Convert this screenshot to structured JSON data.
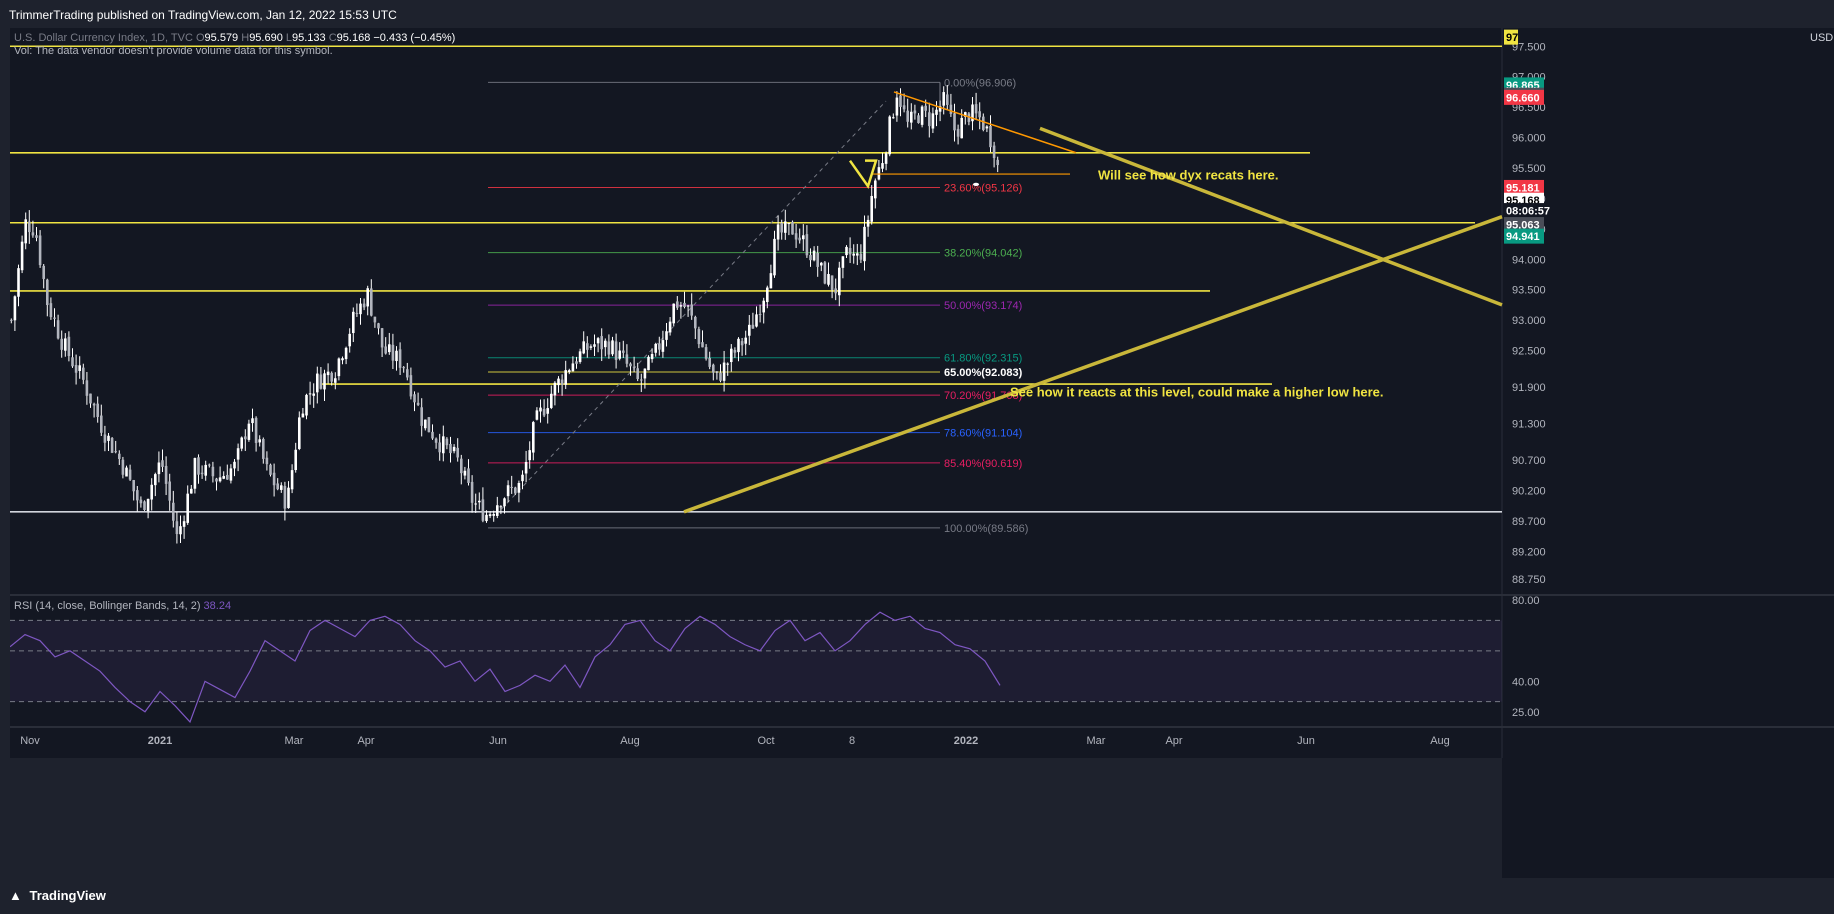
{
  "header": {
    "published": "TrimmerTrading published on TradingView.com, Jan 12, 2022 15:53 UTC"
  },
  "footer": {
    "brand": "TradingView",
    "logo_icon": "tradingview-logo-icon"
  },
  "legend": {
    "symbol": "U.S. Dollar Currency Index, 1D, TVC",
    "o_label": "O",
    "o_value": "95.579",
    "h_label": "H",
    "h_value": "95.690",
    "l_label": "L",
    "l_value": "95.133",
    "c_label": "C",
    "c_value": "95.168",
    "change": "−0.433 (−0.45%)",
    "vol_note": "Vol: The data vendor doesn't provide volume data for this symbol."
  },
  "colors": {
    "background": "#131722",
    "frame": "#1e222d",
    "level_line": "#f0e442",
    "trend_line": "#c9b73a",
    "rsi_line": "#7e57c2",
    "up_down_candle": "#ffffff"
  },
  "chart_data": {
    "type": "candlestick",
    "symbol": "DXY",
    "price_axis": {
      "currency": "USD",
      "tick_labels": [
        "97.500",
        "97.000",
        "96.500",
        "96.000",
        "95.500",
        "95.000",
        "94.500",
        "94.000",
        "93.500",
        "93.000",
        "92.500",
        "91.900",
        "91.300",
        "90.700",
        "90.200",
        "89.700",
        "89.200",
        "88.750"
      ],
      "ylim": [
        88.5,
        97.8
      ]
    },
    "time_axis": {
      "labels": [
        "Nov",
        "2021",
        "Mar",
        "Apr",
        "Jun",
        "Aug",
        "Oct",
        "8",
        "2022",
        "Mar",
        "Apr",
        "Jun",
        "Aug"
      ]
    },
    "price_badges": [
      {
        "text": "97",
        "bg": "#f0e442",
        "fg": "#000000",
        "price": 97.65
      },
      {
        "text": "96.865",
        "bg": "#089981",
        "fg": "#ffffff",
        "price": 96.865
      },
      {
        "text": "96.696",
        "bg": "#4a4e58",
        "fg": "#ffffff",
        "price": 96.696
      },
      {
        "text": "96.660",
        "bg": "#f23645",
        "fg": "#ffffff",
        "price": 96.66
      },
      {
        "text": "95.181",
        "bg": "#f23645",
        "fg": "#ffffff",
        "price": 95.18
      },
      {
        "text": "95.168",
        "bg": "#ffffff",
        "fg": "#000000",
        "price": 94.97
      },
      {
        "text": "08:06:57",
        "bg": "#131722",
        "fg": "#ffffff",
        "price": 94.8
      },
      {
        "text": "95.063",
        "bg": "#4a4e58",
        "fg": "#ffffff",
        "price": 94.57
      },
      {
        "text": "94.941",
        "bg": "#089981",
        "fg": "#ffffff",
        "price": 94.38
      }
    ],
    "fibonacci": [
      {
        "label": "0.00%(96.906)",
        "ratio": 0.0,
        "color": "#787b86"
      },
      {
        "label": "23.60%(95.126)",
        "ratio": 0.236,
        "color": "#f23645"
      },
      {
        "label": "38.20%(94.042)",
        "ratio": 0.382,
        "color": "#4caf50"
      },
      {
        "label": "50.00%(93.174)",
        "ratio": 0.5,
        "color": "#9c27b0"
      },
      {
        "label": "61.80%(92.315)",
        "ratio": 0.618,
        "color": "#089981"
      },
      {
        "label": "65.00%(92.083)",
        "ratio": 0.65,
        "color": "#f0e442"
      },
      {
        "label": "70.20%(91.708)",
        "ratio": 0.702,
        "color": "#e91e63"
      },
      {
        "label": "78.60%(91.104)",
        "ratio": 0.786,
        "color": "#2962ff"
      },
      {
        "label": "85.40%(90.619)",
        "ratio": 0.854,
        "color": "#e91e63"
      },
      {
        "label": "100.00%(89.586)",
        "ratio": 1.0,
        "color": "#787b86"
      }
    ],
    "horizontal_levels": [
      97.5,
      95.75,
      94.6,
      93.48,
      91.95,
      89.85
    ],
    "annotations": [
      {
        "text": "Will see how dyx recats here.",
        "price": 95.38
      },
      {
        "text": "See how it reacts at this level, could make a higher low here.",
        "price": 91.81
      }
    ],
    "candle_anchors": [
      [
        0,
        93.0
      ],
      [
        14,
        94.6
      ],
      [
        24,
        94.5
      ],
      [
        36,
        93.3
      ],
      [
        52,
        92.6
      ],
      [
        72,
        92.0
      ],
      [
        92,
        91.2
      ],
      [
        112,
        90.6
      ],
      [
        130,
        89.9
      ],
      [
        150,
        90.7
      ],
      [
        166,
        89.4
      ],
      [
        184,
        90.6
      ],
      [
        206,
        90.4
      ],
      [
        224,
        90.6
      ],
      [
        238,
        91.4
      ],
      [
        256,
        90.5
      ],
      [
        276,
        90.0
      ],
      [
        290,
        91.6
      ],
      [
        306,
        92.0
      ],
      [
        324,
        92.2
      ],
      [
        342,
        93.0
      ],
      [
        356,
        93.45
      ],
      [
        372,
        92.5
      ],
      [
        392,
        92.3
      ],
      [
        410,
        91.4
      ],
      [
        428,
        91.0
      ],
      [
        446,
        90.7
      ],
      [
        462,
        90.0
      ],
      [
        476,
        89.8
      ],
      [
        490,
        90.1
      ],
      [
        510,
        90.3
      ],
      [
        524,
        91.3
      ],
      [
        540,
        91.8
      ],
      [
        560,
        92.3
      ],
      [
        580,
        92.6
      ],
      [
        598,
        92.6
      ],
      [
        614,
        92.3
      ],
      [
        628,
        91.95
      ],
      [
        646,
        92.5
      ],
      [
        664,
        93.3
      ],
      [
        676,
        93.2
      ],
      [
        690,
        92.6
      ],
      [
        704,
        92.0
      ],
      [
        720,
        92.4
      ],
      [
        738,
        92.8
      ],
      [
        752,
        93.4
      ],
      [
        766,
        94.4
      ],
      [
        782,
        94.5
      ],
      [
        796,
        94.2
      ],
      [
        810,
        93.8
      ],
      [
        824,
        93.5
      ],
      [
        836,
        94.1
      ],
      [
        848,
        94.0
      ],
      [
        856,
        94.6
      ],
      [
        862,
        95.2
      ],
      [
        872,
        95.7
      ],
      [
        880,
        96.3
      ],
      [
        886,
        96.8
      ],
      [
        896,
        96.2
      ],
      [
        908,
        96.4
      ],
      [
        920,
        96.3
      ],
      [
        932,
        96.6
      ],
      [
        944,
        96.1
      ],
      [
        958,
        96.4
      ],
      [
        970,
        96.3
      ],
      [
        982,
        95.9
      ],
      [
        990,
        95.2
      ]
    ],
    "rsi": {
      "label": "RSI (14, close, Bollinger Bands, 14, 2)",
      "value": "38.24",
      "ticks": [
        "80.00",
        "40.00",
        "25.00"
      ],
      "ylim": [
        18,
        82
      ],
      "bands": [
        70,
        55,
        30
      ],
      "values": [
        57,
        63,
        60,
        52,
        55,
        50,
        45,
        37,
        30,
        25,
        35,
        28,
        20,
        40,
        36,
        32,
        45,
        60,
        55,
        50,
        65,
        70,
        66,
        62,
        70,
        72,
        68,
        60,
        55,
        47,
        50,
        40,
        46,
        35,
        38,
        43,
        40,
        48,
        37,
        52,
        58,
        68,
        70,
        60,
        55,
        66,
        72,
        68,
        62,
        58,
        55,
        65,
        70,
        60,
        64,
        55,
        60,
        68,
        74,
        70,
        72,
        66,
        64,
        58,
        56,
        50,
        38
      ]
    }
  }
}
